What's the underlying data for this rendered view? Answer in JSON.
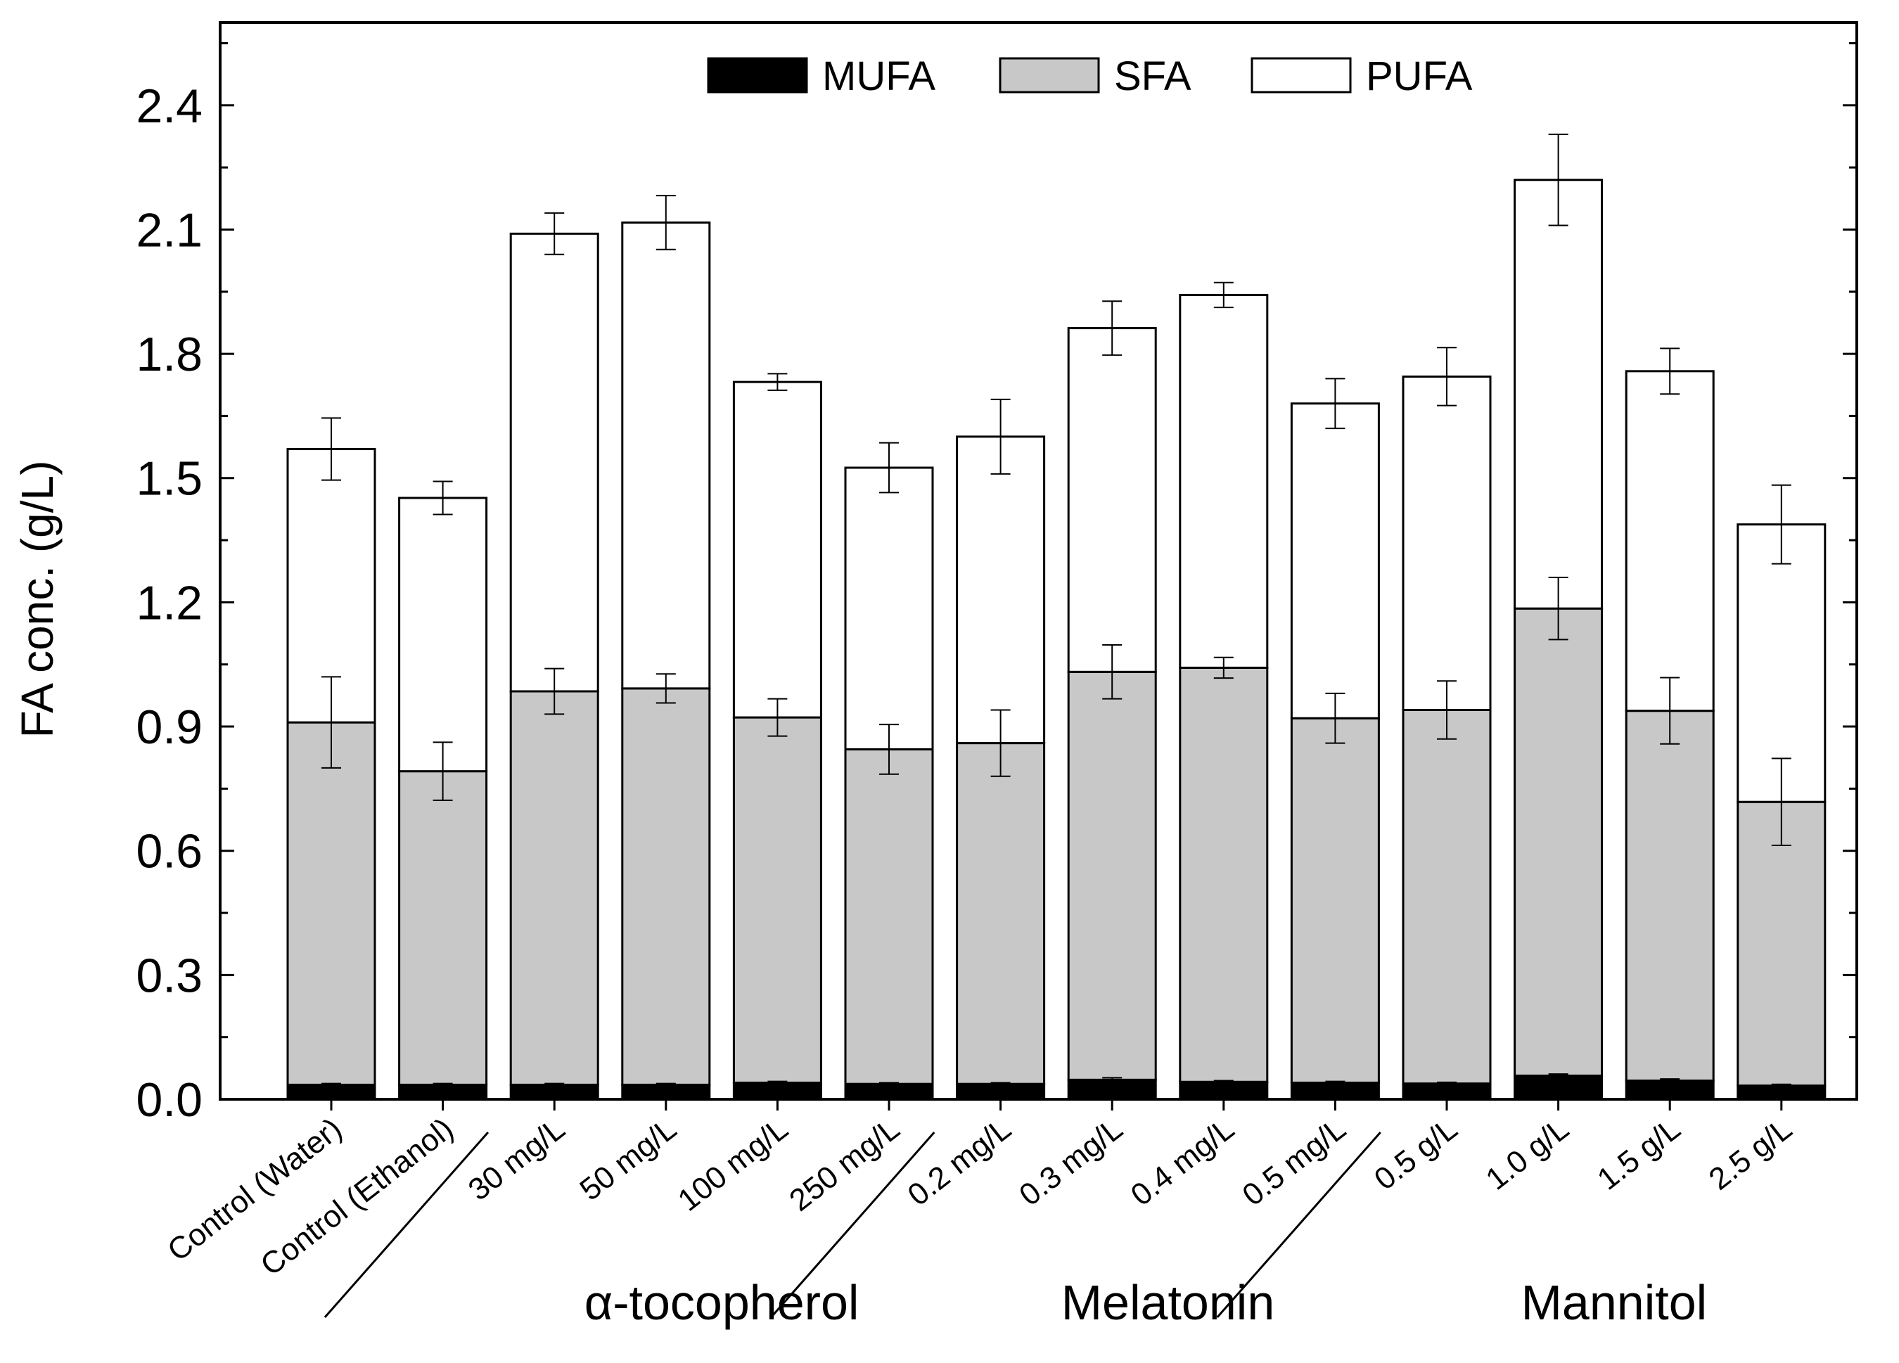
{
  "chart_data": {
    "type": "bar",
    "stacked": true,
    "ylabel": "FA conc. (g/L)",
    "xlabel": "",
    "ylim": [
      0,
      2.6
    ],
    "yticks": [
      "0.0",
      "0.3",
      "0.6",
      "0.9",
      "1.2",
      "1.5",
      "1.8",
      "2.1",
      "2.4"
    ],
    "grid": false,
    "legend_position": "top-center",
    "categories": [
      "Control (Water)",
      "Control (Ethanol)",
      "30 mg/L",
      "50 mg/L",
      "100 mg/L",
      "250 mg/L",
      "0.2 mg/L",
      "0.3 mg/L",
      "0.4 mg/L",
      "0.5 mg/L",
      "0.5 g/L",
      "1.0 g/L",
      "1.5 g/L",
      "2.5 g/L"
    ],
    "groups": [
      {
        "label": "α-tocopherol",
        "from": 2,
        "to": 5
      },
      {
        "label": "Melatonin",
        "from": 6,
        "to": 9
      },
      {
        "label": "Mannitol",
        "from": 10,
        "to": 13
      }
    ],
    "series": [
      {
        "name": "MUFA",
        "color": "#000000",
        "values": [
          0.035,
          0.035,
          0.035,
          0.035,
          0.04,
          0.037,
          0.037,
          0.047,
          0.042,
          0.04,
          0.038,
          0.057,
          0.045,
          0.033
        ],
        "cumulative_error": [
          0.003,
          0.003,
          0.003,
          0.003,
          0.003,
          0.003,
          0.003,
          0.005,
          0.003,
          0.003,
          0.003,
          0.004,
          0.004,
          0.003
        ]
      },
      {
        "name": "SFA",
        "color": "#c8c8c8",
        "values": [
          0.875,
          0.757,
          0.95,
          0.957,
          0.882,
          0.808,
          0.823,
          0.985,
          1.0,
          0.88,
          0.902,
          1.128,
          0.893,
          0.685
        ],
        "cumulative_error": [
          0.11,
          0.07,
          0.055,
          0.035,
          0.045,
          0.06,
          0.08,
          0.065,
          0.025,
          0.06,
          0.07,
          0.075,
          0.08,
          0.105
        ]
      },
      {
        "name": "PUFA",
        "color": "#ffffff",
        "values": [
          0.66,
          0.66,
          1.105,
          1.125,
          0.81,
          0.68,
          0.74,
          0.83,
          0.9,
          0.76,
          0.805,
          1.035,
          0.82,
          0.67
        ],
        "cumulative_error": [
          0.075,
          0.04,
          0.05,
          0.065,
          0.02,
          0.06,
          0.09,
          0.065,
          0.03,
          0.06,
          0.07,
          0.11,
          0.055,
          0.095
        ]
      }
    ]
  }
}
